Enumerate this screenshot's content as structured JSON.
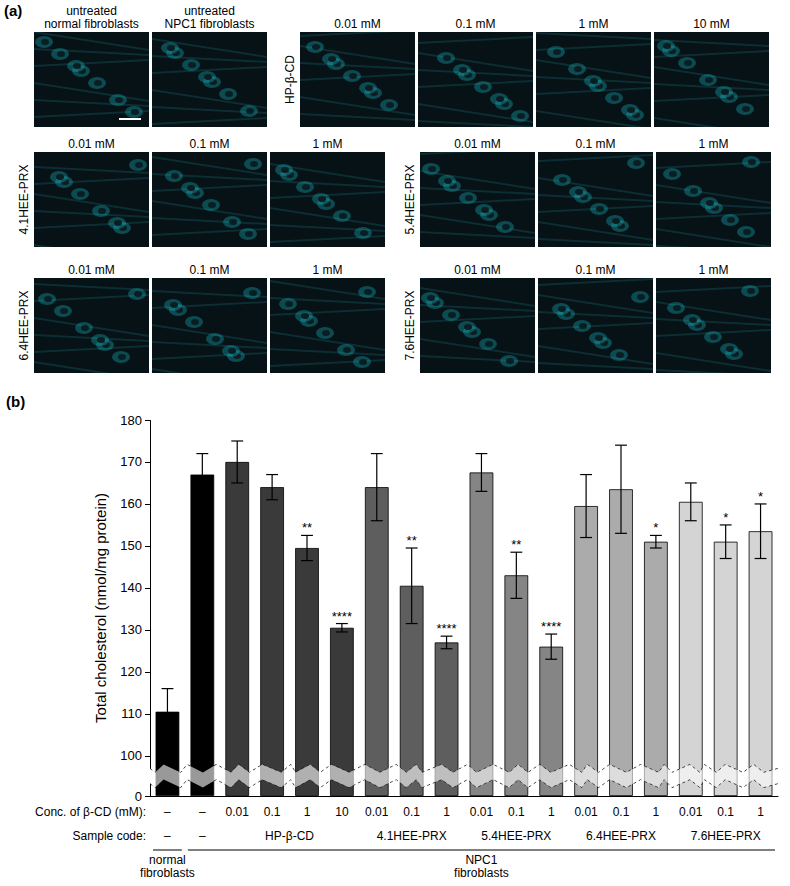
{
  "panel_a": {
    "label": "(a)",
    "rows": [
      [
        {
          "group": null,
          "panels": [
            "untreated\nnormal fibroblasts",
            "untreated\nNPC1 fibroblasts"
          ]
        },
        {
          "group": "HP-β-CD",
          "panels": [
            "0.01 mM",
            "0.1 mM",
            "1 mM",
            "10 mM"
          ]
        }
      ],
      [
        {
          "group": "4.1HEE-PRX",
          "panels": [
            "0.01 mM",
            "0.1 mM",
            "1 mM"
          ]
        },
        {
          "group": "5.4HEE-PRX",
          "panels": [
            "0.01 mM",
            "0.1 mM",
            "1 mM"
          ]
        }
      ],
      [
        {
          "group": "6.4HEE-PRX",
          "panels": [
            "0.01 mM",
            "0.1 mM",
            "1 mM"
          ]
        },
        {
          "group": "7.6HEE-PRX",
          "panels": [
            "0.01 mM",
            "0.1 mM",
            "1 mM"
          ]
        }
      ]
    ]
  },
  "chart_data": {
    "type": "bar",
    "panel_label": "(b)",
    "y_label": "Total cholesterol (nmol/mg protein)",
    "x_row_label": "Conc. of β-CD (mM):",
    "categories": [
      "–",
      "–",
      "0.01",
      "0.1",
      "1",
      "10",
      "0.01",
      "0.1",
      "1",
      "0.01",
      "0.1",
      "1",
      "0.01",
      "0.1",
      "1",
      "0.01",
      "0.1",
      "1"
    ],
    "values": [
      110.5,
      167,
      170,
      164,
      149.5,
      130.5,
      164,
      140.5,
      127,
      167.5,
      143,
      126,
      159.5,
      163.5,
      151,
      160.5,
      151,
      153.5
    ],
    "errors": [
      5.5,
      5,
      5,
      3,
      3,
      1,
      8,
      9,
      1.5,
      4.5,
      5.5,
      3,
      7.5,
      10.5,
      1.5,
      4.5,
      4,
      6.5
    ],
    "significance": [
      null,
      null,
      null,
      null,
      "**",
      "****",
      null,
      "**",
      "****",
      null,
      "**",
      "****",
      null,
      null,
      "*",
      null,
      "*",
      "*"
    ],
    "colors": [
      "#000000",
      "#000000",
      "#3a3a3a",
      "#3a3a3a",
      "#3a3a3a",
      "#3a3a3a",
      "#5e5e5e",
      "#5e5e5e",
      "#5e5e5e",
      "#858585",
      "#858585",
      "#858585",
      "#ababab",
      "#ababab",
      "#ababab",
      "#d4d4d4",
      "#d4d4d4",
      "#d4d4d4"
    ],
    "sample_code_label": "Sample code:",
    "sample_codes": [
      {
        "label": "–",
        "from": 0,
        "to": 0
      },
      {
        "label": "–",
        "from": 1,
        "to": 1
      },
      {
        "label": "HP-β-CD",
        "from": 2,
        "to": 5
      },
      {
        "label": "4.1HEE-PRX",
        "from": 6,
        "to": 8
      },
      {
        "label": "5.4HEE-PRX",
        "from": 9,
        "to": 11
      },
      {
        "label": "6.4HEE-PRX",
        "from": 12,
        "to": 14
      },
      {
        "label": "7.6HEE-PRX",
        "from": 15,
        "to": 17
      }
    ],
    "cell_types": [
      {
        "label": "normal\nfibroblasts",
        "from": 0,
        "to": 0
      },
      {
        "label": "NPC1\nfibroblasts",
        "from": 1,
        "to": 17
      }
    ],
    "ylim": [
      0,
      180
    ],
    "yticks": [
      0,
      100,
      110,
      120,
      130,
      140,
      150,
      160,
      170,
      180
    ],
    "y_break": [
      3,
      97
    ],
    "grid": false
  }
}
